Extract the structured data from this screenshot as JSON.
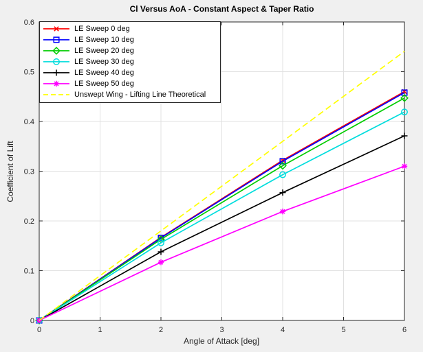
{
  "window": {
    "background": "#f0f0f0"
  },
  "chart_data": {
    "type": "line",
    "title": "Cl Versus AoA - Constant Aspect & Taper Ratio",
    "xlabel": "Angle of Attack [deg]",
    "ylabel": "Coefficient of Lift",
    "x": [
      0,
      2,
      4,
      6
    ],
    "xlim": [
      0,
      6
    ],
    "ylim": [
      0,
      0.6
    ],
    "xticks": [
      0,
      1,
      2,
      3,
      4,
      5,
      6
    ],
    "xtick_labels": [
      "0",
      "1",
      "2",
      "3",
      "4",
      "5",
      "6"
    ],
    "yticks": [
      0,
      0.1,
      0.2,
      0.3,
      0.4,
      0.5,
      0.6
    ],
    "ytick_labels": [
      "0",
      "0.1",
      "0.2",
      "0.3",
      "0.4",
      "0.5",
      "0.6"
    ],
    "grid": true,
    "legend_position": "top-left",
    "colors": {
      "figure_bg": "#f0f0f0",
      "plot_bg": "#ffffff",
      "grid": "#e0e0e0",
      "axis": "#262626",
      "tick_label": "#262626"
    },
    "series": [
      {
        "name": "LE Sweep 0 deg",
        "color": "#ff0000",
        "marker": "x",
        "dash": "solid",
        "values": [
          0,
          0.167,
          0.322,
          0.46
        ]
      },
      {
        "name": "LE Sweep 10 deg",
        "color": "#0000ff",
        "marker": "square",
        "dash": "solid",
        "values": [
          0,
          0.166,
          0.32,
          0.458
        ]
      },
      {
        "name": "LE Sweep 20 deg",
        "color": "#00cc00",
        "marker": "diamond",
        "dash": "solid",
        "values": [
          0,
          0.163,
          0.311,
          0.447
        ]
      },
      {
        "name": "LE Sweep 30 deg",
        "color": "#00dddd",
        "marker": "circle",
        "dash": "solid",
        "values": [
          0,
          0.156,
          0.293,
          0.419
        ]
      },
      {
        "name": "LE Sweep 40 deg",
        "color": "#000000",
        "marker": "plus",
        "dash": "solid",
        "values": [
          0,
          0.138,
          0.257,
          0.371
        ]
      },
      {
        "name": "LE Sweep 50 deg",
        "color": "#ff00ff",
        "marker": "asterisk",
        "dash": "solid",
        "values": [
          0,
          0.117,
          0.219,
          0.31
        ]
      },
      {
        "name": "Unswept Wing - Lifting Line Theoretical",
        "color": "#ffff00",
        "marker": "none",
        "dash": "dashed",
        "values": [
          0,
          0.18,
          0.36,
          0.541
        ]
      }
    ]
  }
}
